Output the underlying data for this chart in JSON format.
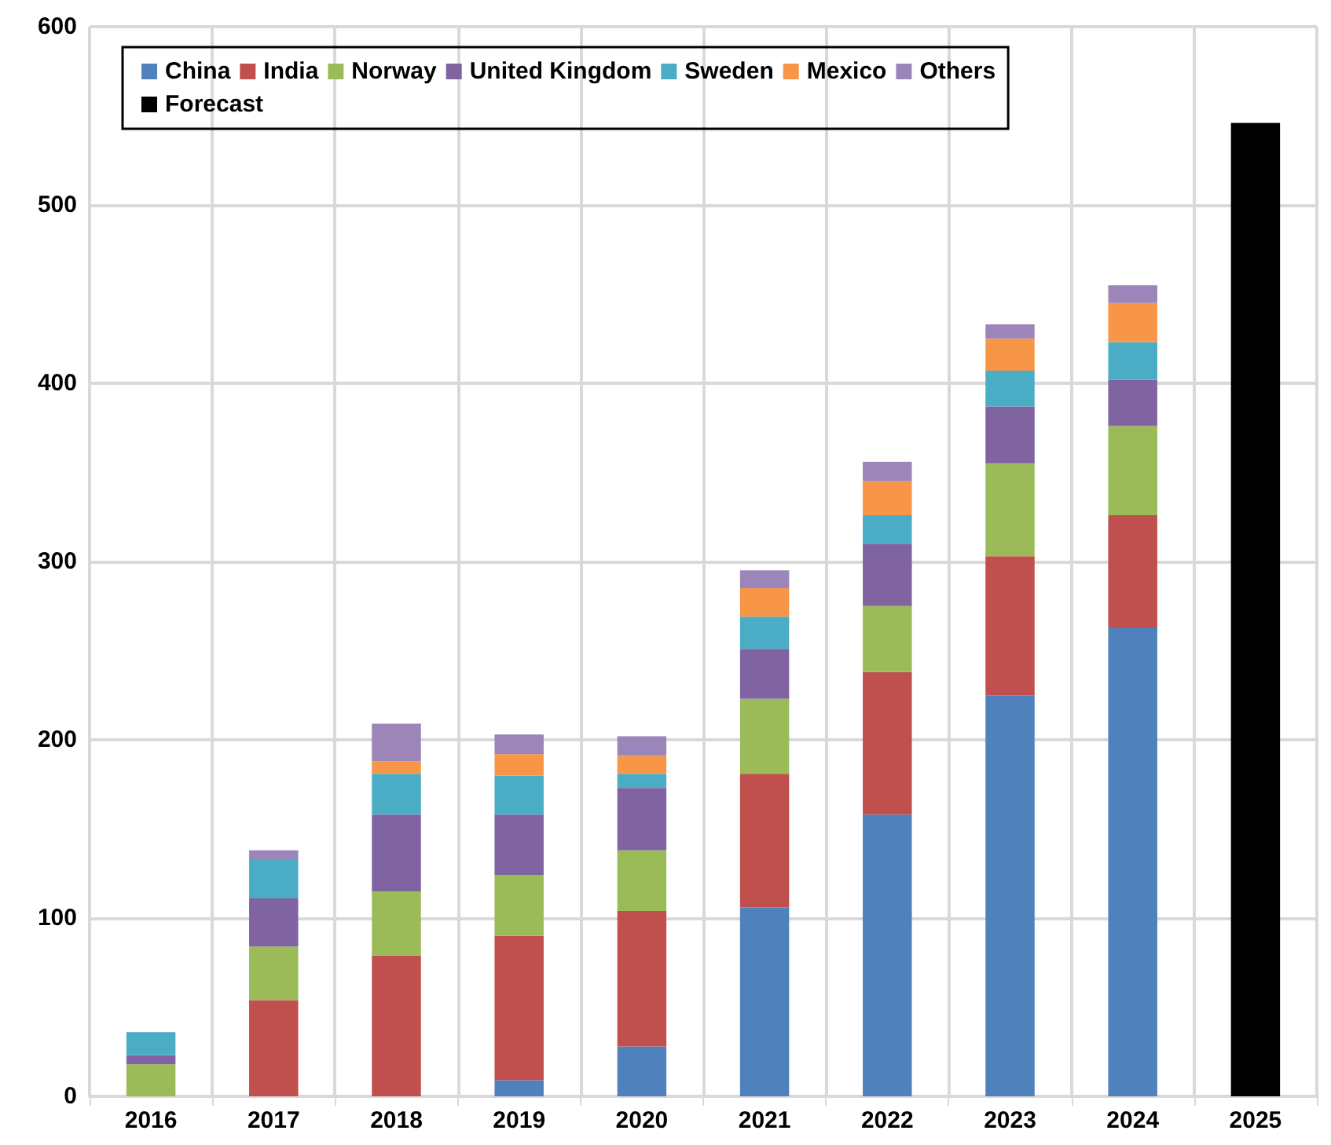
{
  "chart_data": {
    "type": "bar",
    "stacked": true,
    "categories": [
      "2016",
      "2017",
      "2018",
      "2019",
      "2020",
      "2021",
      "2022",
      "2023",
      "2024",
      "2025"
    ],
    "series": [
      {
        "name": "China",
        "color": "#4f81bd",
        "values": [
          0,
          0,
          0,
          9,
          28,
          106,
          158,
          225,
          263,
          null
        ]
      },
      {
        "name": "India",
        "color": "#c0504d",
        "values": [
          0,
          54,
          79,
          81,
          76,
          75,
          80,
          78,
          63,
          null
        ]
      },
      {
        "name": "Norway",
        "color": "#9bbb59",
        "values": [
          18,
          30,
          36,
          34,
          34,
          42,
          37,
          52,
          50,
          null
        ]
      },
      {
        "name": "United Kingdom",
        "color": "#8064a2",
        "values": [
          5,
          27,
          43,
          34,
          35,
          28,
          35,
          32,
          26,
          null
        ]
      },
      {
        "name": "Sweden",
        "color": "#4bacc6",
        "values": [
          13,
          22,
          23,
          22,
          8,
          18,
          16,
          20,
          21,
          null
        ]
      },
      {
        "name": "Mexico",
        "color": "#f79646",
        "values": [
          0,
          0,
          7,
          12,
          10,
          16,
          19,
          18,
          22,
          null
        ]
      },
      {
        "name": "Others",
        "color": "#9c85b8",
        "values": [
          0,
          5,
          21,
          11,
          11,
          10,
          11,
          8,
          10,
          null
        ]
      },
      {
        "name": "Forecast",
        "color": "#000000",
        "values": [
          null,
          null,
          null,
          null,
          null,
          null,
          null,
          null,
          null,
          546
        ]
      }
    ],
    "ylim": [
      0,
      600
    ],
    "yticks": [
      0,
      100,
      200,
      300,
      400,
      500,
      600
    ],
    "grid": true,
    "legend": "top left"
  }
}
